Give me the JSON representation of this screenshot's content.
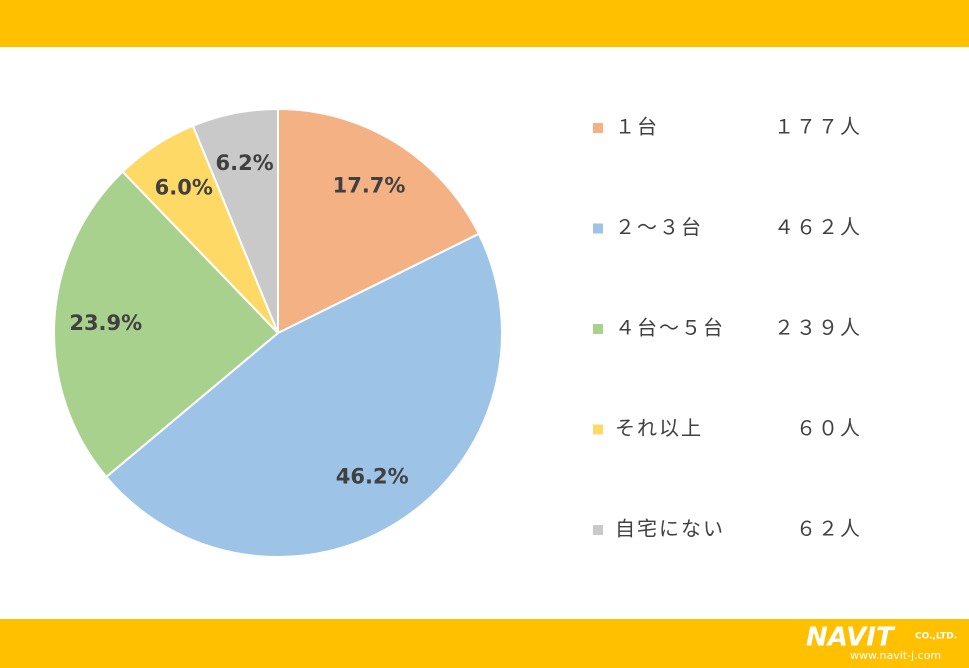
{
  "chart_data": {
    "type": "pie",
    "categories": [
      "１台",
      "２～３台",
      "４台～５台",
      "それ以上",
      "自宅にない"
    ],
    "values": [
      17.7,
      46.2,
      23.9,
      6.0,
      6.2
    ],
    "value_labels": [
      "17.7%",
      "46.2%",
      "23.9%",
      "6.0%",
      "6.2%"
    ],
    "colors": [
      "#F4B183",
      "#9DC3E6",
      "#A9D18E",
      "#FFD966",
      "#C9C9C9"
    ],
    "counts": [
      "１７７人",
      "４６２人",
      "２３９人",
      "６０人",
      "６２人"
    ],
    "legend": "right"
  },
  "logo": {
    "name": "NAVIT",
    "suffix": "CO.,LTD.",
    "url": "www.navit-j.com"
  }
}
